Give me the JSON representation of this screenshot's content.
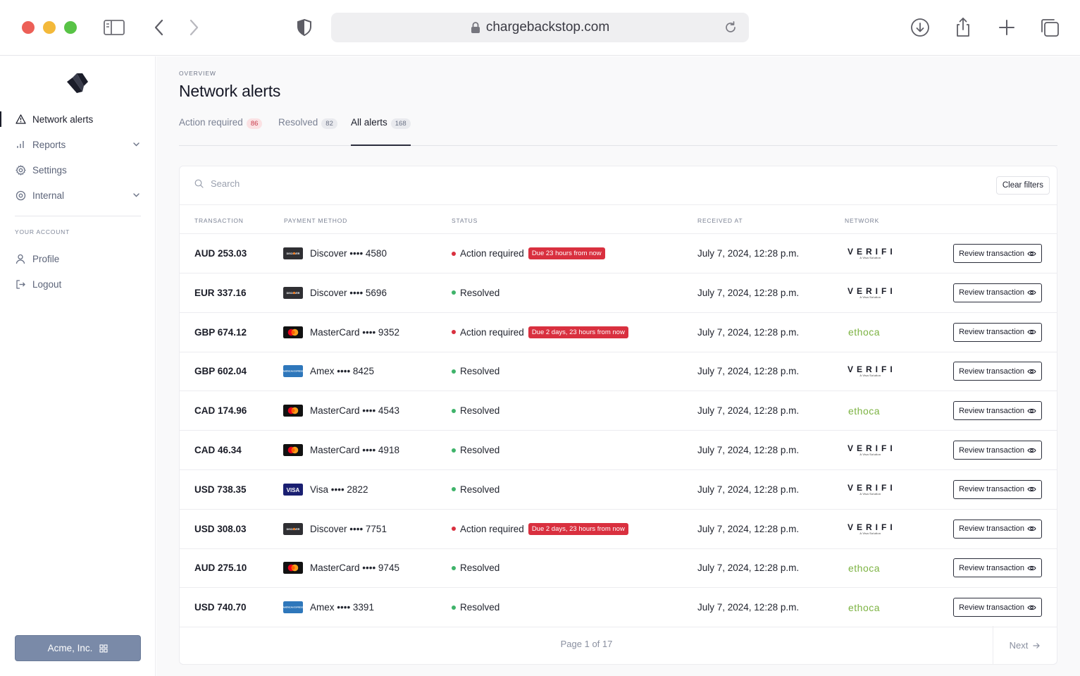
{
  "browser": {
    "url": "chargebackstop.com"
  },
  "sidebar": {
    "items": [
      {
        "label": "Network alerts",
        "icon": "alert-triangle-icon"
      },
      {
        "label": "Reports",
        "icon": "bar-chart-icon"
      },
      {
        "label": "Settings",
        "icon": "gear-icon"
      },
      {
        "label": "Internal",
        "icon": "target-icon"
      }
    ],
    "section_title": "YOUR ACCOUNT",
    "account_items": [
      {
        "label": "Profile",
        "icon": "user-icon"
      },
      {
        "label": "Logout",
        "icon": "logout-icon"
      }
    ],
    "org_button": "Acme, Inc."
  },
  "header": {
    "overline": "OVERVIEW",
    "title": "Network alerts"
  },
  "tabs": [
    {
      "label": "Action required",
      "count": "86"
    },
    {
      "label": "Resolved",
      "count": "82"
    },
    {
      "label": "All alerts",
      "count": "168"
    }
  ],
  "search": {
    "placeholder": "Search"
  },
  "clear_filters": "Clear filters",
  "table": {
    "headers": [
      "TRANSACTION",
      "PAYMENT METHOD",
      "STATUS",
      "RECEIVED AT",
      "NETWORK"
    ],
    "review_label": "Review transaction",
    "rows": [
      {
        "amount": "AUD 253.03",
        "method": "Discover •••• 4580",
        "card": "discover",
        "status": "Action required",
        "due": "Due 23 hours from now",
        "received": "July 7, 2024, 12:28 p.m.",
        "network": "verifi"
      },
      {
        "amount": "EUR 337.16",
        "method": "Discover •••• 5696",
        "card": "discover",
        "status": "Resolved",
        "due": "",
        "received": "July 7, 2024, 12:28 p.m.",
        "network": "verifi"
      },
      {
        "amount": "GBP 674.12",
        "method": "MasterCard •••• 9352",
        "card": "mastercard",
        "status": "Action required",
        "due": "Due 2 days, 23 hours from now",
        "received": "July 7, 2024, 12:28 p.m.",
        "network": "ethoca"
      },
      {
        "amount": "GBP 602.04",
        "method": "Amex •••• 8425",
        "card": "amex",
        "status": "Resolved",
        "due": "",
        "received": "July 7, 2024, 12:28 p.m.",
        "network": "verifi"
      },
      {
        "amount": "CAD 174.96",
        "method": "MasterCard •••• 4543",
        "card": "mastercard",
        "status": "Resolved",
        "due": "",
        "received": "July 7, 2024, 12:28 p.m.",
        "network": "ethoca"
      },
      {
        "amount": "CAD 46.34",
        "method": "MasterCard •••• 4918",
        "card": "mastercard",
        "status": "Resolved",
        "due": "",
        "received": "July 7, 2024, 12:28 p.m.",
        "network": "verifi"
      },
      {
        "amount": "USD 738.35",
        "method": "Visa •••• 2822",
        "card": "visa",
        "status": "Resolved",
        "due": "",
        "received": "July 7, 2024, 12:28 p.m.",
        "network": "verifi"
      },
      {
        "amount": "USD 308.03",
        "method": "Discover •••• 7751",
        "card": "discover",
        "status": "Action required",
        "due": "Due 2 days, 23 hours from now",
        "received": "July 7, 2024, 12:28 p.m.",
        "network": "verifi"
      },
      {
        "amount": "AUD 275.10",
        "method": "MasterCard •••• 9745",
        "card": "mastercard",
        "status": "Resolved",
        "due": "",
        "received": "July 7, 2024, 12:28 p.m.",
        "network": "ethoca"
      },
      {
        "amount": "USD 740.70",
        "method": "Amex •••• 3391",
        "card": "amex",
        "status": "Resolved",
        "due": "",
        "received": "July 7, 2024, 12:28 p.m.",
        "network": "ethoca"
      }
    ]
  },
  "network_labels": {
    "verifi": "VERIFI",
    "verifi_sub": "A Visa Solution",
    "ethoca": "ethoca"
  },
  "card_labels": {
    "discover": "DISCOVER",
    "amex": "AMERICAN EXPRESS",
    "visa": "VISA"
  },
  "pagination": {
    "page_info": "Page 1 of 17",
    "next_label": "Next"
  },
  "colors": {
    "action_dot": "#d9303f",
    "resolved_dot": "#3fb36a",
    "badge": "#d9303f",
    "ethoca": "#7cb342",
    "org_button": "#7a8aa8"
  }
}
